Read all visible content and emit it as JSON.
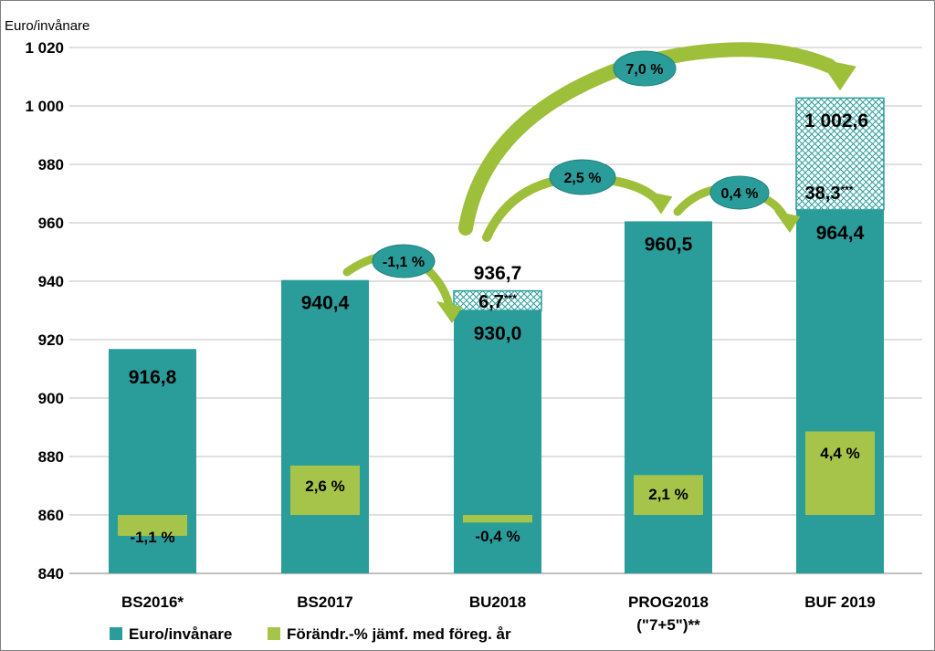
{
  "chart_data": {
    "type": "bar",
    "ylabel": "Euro/invånare",
    "ylim": [
      840,
      1020
    ],
    "y_ticks": [
      "840",
      "860",
      "880",
      "900",
      "920",
      "940",
      "960",
      "980",
      "1 000",
      "1 020"
    ],
    "grid": true,
    "legend_position": "bottom-left",
    "categories": [
      {
        "line1": "BS2016*",
        "line2": ""
      },
      {
        "line1": "BS2017",
        "line2": ""
      },
      {
        "line1": "BU2018",
        "line2": ""
      },
      {
        "line1": "PROG2018",
        "line2": "(\"7+5\")**"
      },
      {
        "line1": "BUF 2019",
        "line2": ""
      }
    ],
    "series": [
      {
        "name": "Euro/invånare",
        "color": "#2a9d9b",
        "values": [
          916.8,
          940.4,
          930.0,
          960.5,
          964.4
        ],
        "labels": [
          "916,8",
          "940,4",
          "930,0",
          "960,5",
          "964,4"
        ]
      },
      {
        "name": "Förändr.-% jämf. med föreg. år",
        "color": "#a6c34a",
        "values": [
          -1.1,
          2.6,
          -0.4,
          2.1,
          4.4
        ],
        "labels": [
          "-1,1 %",
          "2,6 %",
          "-0,4 %",
          "2,1 %",
          "4,4 %"
        ]
      }
    ],
    "stacked_additions": [
      {
        "category_index": 2,
        "value": 6.7,
        "label": "6,7",
        "mark": "***",
        "total": 936.7,
        "total_label": "936,7"
      },
      {
        "category_index": 4,
        "value": 38.3,
        "label": "38,3",
        "mark": "***",
        "total": 1002.6,
        "total_label": "1 002,6"
      }
    ],
    "change_arrows": [
      {
        "from": 1,
        "to": 2,
        "label": "-1,1 %"
      },
      {
        "from": 2,
        "to": 3,
        "label": "2,5 %"
      },
      {
        "from": 3,
        "to": 4,
        "label": "0,4 %"
      },
      {
        "from": 2,
        "to": 4,
        "label": "7,0 %"
      }
    ]
  }
}
